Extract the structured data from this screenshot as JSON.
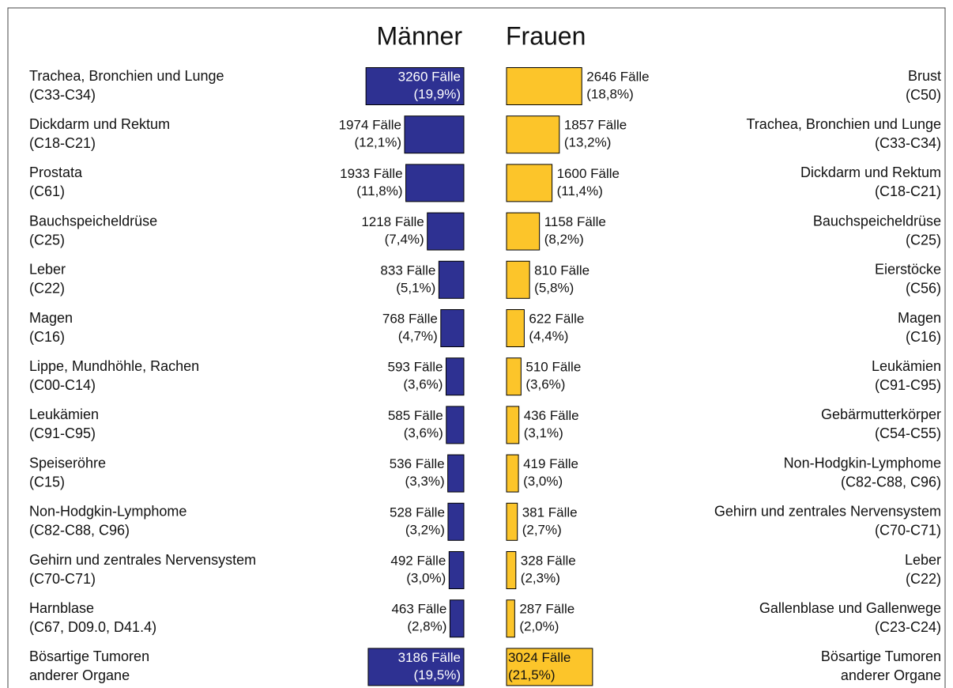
{
  "chart_data": {
    "type": "butterfly-bar",
    "series": [
      {
        "name": "Männer",
        "color": "#2e3192",
        "labels": [
          "Trachea, Bronchien und Lunge",
          "Dickdarm und Rektum",
          "Prostata",
          "Bauchspeicheldrüse",
          "Leber",
          "Magen",
          "Lippe, Mundhöhle, Rachen",
          "Leukämien",
          "Speiseröhre",
          "Non-Hodgkin-Lymphome",
          "Gehirn und zentrales Nervensystem",
          "Harnblase",
          "Bösartige Tumoren"
        ],
        "sublabels": [
          "(C33-C34)",
          "(C18-C21)",
          "(C61)",
          "(C25)",
          "(C22)",
          "(C16)",
          "(C00-C14)",
          "(C91-C95)",
          "(C15)",
          "(C82-C88, C96)",
          "(C70-C71)",
          "(C67, D09.0, D41.4)",
          "anderer Organe"
        ],
        "values": [
          3260,
          1974,
          1933,
          1218,
          833,
          768,
          593,
          585,
          536,
          528,
          492,
          463,
          3186
        ],
        "value_labels": [
          "3260 Fälle",
          "1974 Fälle",
          "1933 Fälle",
          "1218 Fälle",
          "833 Fälle",
          "768 Fälle",
          "593 Fälle",
          "585 Fälle",
          "536 Fälle",
          "528 Fälle",
          "492 Fälle",
          "463 Fälle",
          "3186 Fälle"
        ],
        "share_labels": [
          "(19,9%)",
          "(12,1%)",
          "(11,8%)",
          "(7,4%)",
          "(5,1%)",
          "(4,7%)",
          "(3,6%)",
          "(3,6%)",
          "(3,3%)",
          "(3,2%)",
          "(3,0%)",
          "(2,8%)",
          "(19,5%)"
        ]
      },
      {
        "name": "Frauen",
        "color": "#fcc52a",
        "labels": [
          "Brust",
          "Trachea, Bronchien und Lunge",
          "Dickdarm und Rektum",
          "Bauchspeicheldrüse",
          "Eierstöcke",
          "Magen",
          "Leukämien",
          "Gebärmutterkörper",
          "Non-Hodgkin-Lymphome",
          "Gehirn und zentrales Nervensystem",
          "Leber",
          "Gallenblase und Gallenwege",
          "Bösartige Tumoren"
        ],
        "sublabels": [
          "(C50)",
          "(C33-C34)",
          "(C18-C21)",
          "(C25)",
          "(C56)",
          "(C16)",
          "(C91-C95)",
          "(C54-C55)",
          "(C82-C88, C96)",
          "(C70-C71)",
          "(C22)",
          "(C23-C24)",
          "anderer Organe"
        ],
        "values": [
          2646,
          1857,
          1600,
          1158,
          810,
          622,
          510,
          436,
          419,
          381,
          328,
          287,
          3024
        ],
        "value_labels": [
          "2646 Fälle",
          "1857 Fälle",
          "1600 Fälle",
          "1158 Fälle",
          "810 Fälle",
          "622 Fälle",
          "510 Fälle",
          "436 Fälle",
          "419 Fälle",
          "381 Fälle",
          "328 Fälle",
          "287 Fälle",
          "3024 Fälle"
        ],
        "share_labels": [
          "(18,8%)",
          "(13,2%)",
          "(11,4%)",
          "(8,2%)",
          "(5,8%)",
          "(4,4%)",
          "(3,6%)",
          "(3,1%)",
          "(3,0%)",
          "(2,7%)",
          "(2,3%)",
          "(2,0%)",
          "(21,5%)"
        ]
      }
    ]
  }
}
